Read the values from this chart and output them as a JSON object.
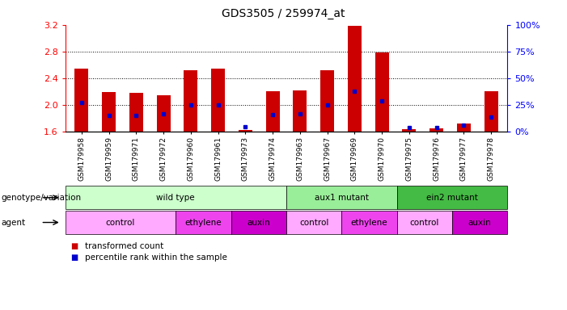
{
  "title": "GDS3505 / 259974_at",
  "samples": [
    "GSM179958",
    "GSM179959",
    "GSM179971",
    "GSM179972",
    "GSM179960",
    "GSM179961",
    "GSM179973",
    "GSM179974",
    "GSM179963",
    "GSM179967",
    "GSM179969",
    "GSM179970",
    "GSM179975",
    "GSM179976",
    "GSM179977",
    "GSM179978"
  ],
  "red_values": [
    2.55,
    2.19,
    2.18,
    2.15,
    2.52,
    2.54,
    1.63,
    2.21,
    2.22,
    2.52,
    3.19,
    2.78,
    1.64,
    1.65,
    1.72,
    2.21
  ],
  "blue_values": [
    27,
    15,
    15,
    17,
    25,
    25,
    5,
    16,
    17,
    25,
    38,
    29,
    4,
    4,
    6,
    14
  ],
  "ylim_left": [
    1.6,
    3.2
  ],
  "ylim_right": [
    0,
    100
  ],
  "yticks_left": [
    1.6,
    2.0,
    2.4,
    2.8,
    3.2
  ],
  "yticks_right": [
    0,
    25,
    50,
    75,
    100
  ],
  "bar_color": "#cc0000",
  "blue_color": "#0000cc",
  "base_value": 1.6,
  "genotype_groups": [
    {
      "label": "wild type",
      "start": 0,
      "end": 8,
      "color": "#ccffcc"
    },
    {
      "label": "aux1 mutant",
      "start": 8,
      "end": 12,
      "color": "#99ee99"
    },
    {
      "label": "ein2 mutant",
      "start": 12,
      "end": 16,
      "color": "#44bb44"
    }
  ],
  "agent_groups": [
    {
      "label": "control",
      "start": 0,
      "end": 4,
      "color": "#ffaaff"
    },
    {
      "label": "ethylene",
      "start": 4,
      "end": 6,
      "color": "#ee44ee"
    },
    {
      "label": "auxin",
      "start": 6,
      "end": 8,
      "color": "#cc00cc"
    },
    {
      "label": "control",
      "start": 8,
      "end": 10,
      "color": "#ffaaff"
    },
    {
      "label": "ethylene",
      "start": 10,
      "end": 12,
      "color": "#ee44ee"
    },
    {
      "label": "control",
      "start": 12,
      "end": 14,
      "color": "#ffaaff"
    },
    {
      "label": "auxin",
      "start": 14,
      "end": 16,
      "color": "#cc00cc"
    }
  ],
  "legend_items": [
    {
      "label": "transformed count",
      "color": "#cc0000"
    },
    {
      "label": "percentile rank within the sample",
      "color": "#0000cc"
    }
  ]
}
